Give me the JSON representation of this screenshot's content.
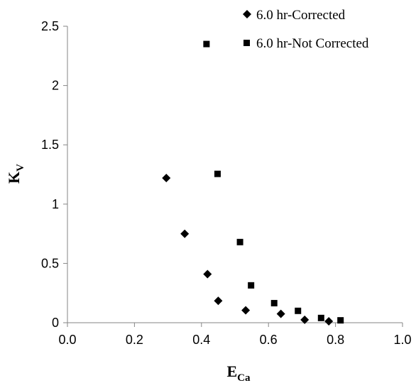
{
  "chart_data": {
    "type": "scatter",
    "xlabel": "E",
    "xlabel_sub": "Ca",
    "ylabel": "K",
    "ylabel_sub": "V",
    "xlim": [
      0.0,
      1.0
    ],
    "ylim": [
      0,
      2.5
    ],
    "x_ticks": [
      "0.0",
      "0.2",
      "0.4",
      "0.6",
      "0.8",
      "1.0"
    ],
    "y_ticks": [
      "0",
      "0.5",
      "1",
      "1.5",
      "2",
      "2.5"
    ],
    "grid": false,
    "legend_position": "top-right",
    "series": [
      {
        "name": "6.0 hr-Corrected",
        "marker": "diamond",
        "color": "#000000",
        "points": [
          {
            "x": 0.295,
            "y": 1.22
          },
          {
            "x": 0.35,
            "y": 0.75
          },
          {
            "x": 0.418,
            "y": 0.41
          },
          {
            "x": 0.45,
            "y": 0.185
          },
          {
            "x": 0.532,
            "y": 0.105
          },
          {
            "x": 0.637,
            "y": 0.075
          },
          {
            "x": 0.708,
            "y": 0.025
          },
          {
            "x": 0.78,
            "y": 0.012
          }
        ]
      },
      {
        "name": "6.0 hr-Not Corrected",
        "marker": "square",
        "color": "#000000",
        "points": [
          {
            "x": 0.415,
            "y": 2.35
          },
          {
            "x": 0.448,
            "y": 1.255
          },
          {
            "x": 0.515,
            "y": 0.68
          },
          {
            "x": 0.548,
            "y": 0.315
          },
          {
            "x": 0.617,
            "y": 0.165
          },
          {
            "x": 0.688,
            "y": 0.1
          },
          {
            "x": 0.757,
            "y": 0.04
          },
          {
            "x": 0.815,
            "y": 0.02
          }
        ]
      }
    ]
  }
}
